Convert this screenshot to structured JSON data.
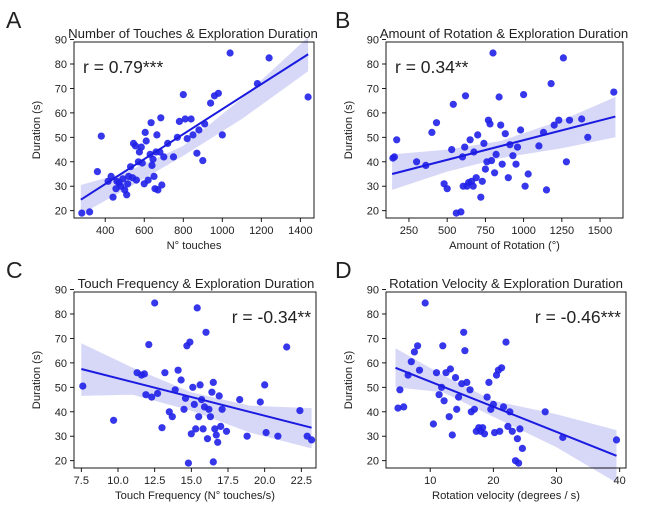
{
  "style": {
    "point_color": "#2020e8",
    "line_color": "#1a1ae0",
    "band_color": "#c9c9f4",
    "axis_color": "#000000"
  },
  "chart_data": [
    {
      "panel_letter": "A",
      "type": "scatter",
      "title": "Number of Touches & Exploration Duration",
      "xlabel": "N° touches",
      "ylabel": "Duration (s)",
      "annotation": "r = 0.79***",
      "annotation_position": "top-left",
      "xlim": [
        240,
        1470
      ],
      "ylim": [
        17,
        89
      ],
      "xticks": [
        400,
        600,
        800,
        1000,
        1200,
        1400
      ],
      "yticks": [
        20,
        30,
        40,
        50,
        60,
        70,
        80,
        90
      ],
      "regression": {
        "x": [
          275,
          1440
        ],
        "y": [
          24.5,
          84
        ]
      },
      "band": {
        "upper": [
          [
            275,
            30.5
          ],
          [
            500,
            35.5
          ],
          [
            800,
            46.5
          ],
          [
            1100,
            66
          ],
          [
            1440,
            91
          ]
        ],
        "lower": [
          [
            275,
            18.5
          ],
          [
            500,
            28.5
          ],
          [
            800,
            42.5
          ],
          [
            1100,
            57.5
          ],
          [
            1440,
            77
          ]
        ]
      },
      "points": [
        [
          280,
          19
        ],
        [
          320,
          19.5
        ],
        [
          360,
          36
        ],
        [
          380,
          50.5
        ],
        [
          415,
          32
        ],
        [
          430,
          34
        ],
        [
          440,
          25.5
        ],
        [
          455,
          29
        ],
        [
          460,
          32
        ],
        [
          470,
          31.5
        ],
        [
          480,
          30
        ],
        [
          490,
          33
        ],
        [
          500,
          28.5
        ],
        [
          510,
          26.5
        ],
        [
          515,
          31
        ],
        [
          520,
          34
        ],
        [
          530,
          38
        ],
        [
          540,
          33.5
        ],
        [
          545,
          47.5
        ],
        [
          555,
          46.5
        ],
        [
          560,
          32.5
        ],
        [
          570,
          40
        ],
        [
          575,
          44
        ],
        [
          585,
          46
        ],
        [
          590,
          39.5
        ],
        [
          600,
          31
        ],
        [
          605,
          52
        ],
        [
          610,
          48.5
        ],
        [
          620,
          32.5
        ],
        [
          630,
          43
        ],
        [
          635,
          56
        ],
        [
          640,
          38.5
        ],
        [
          645,
          41
        ],
        [
          650,
          34
        ],
        [
          655,
          29
        ],
        [
          660,
          44
        ],
        [
          665,
          51
        ],
        [
          670,
          28.5
        ],
        [
          680,
          44
        ],
        [
          685,
          58
        ],
        [
          690,
          30.5
        ],
        [
          700,
          42
        ],
        [
          720,
          47.5
        ],
        [
          750,
          42
        ],
        [
          770,
          50
        ],
        [
          780,
          56.5
        ],
        [
          800,
          67.5
        ],
        [
          810,
          57.5
        ],
        [
          820,
          49.5
        ],
        [
          840,
          57.5
        ],
        [
          850,
          51
        ],
        [
          870,
          43.5
        ],
        [
          880,
          53
        ],
        [
          900,
          40.5
        ],
        [
          910,
          55.5
        ],
        [
          940,
          64
        ],
        [
          960,
          67
        ],
        [
          980,
          68
        ],
        [
          1000,
          51
        ],
        [
          1040,
          84.5
        ],
        [
          1180,
          72
        ],
        [
          1240,
          82.5
        ],
        [
          1440,
          66.5
        ]
      ]
    },
    {
      "panel_letter": "B",
      "type": "scatter",
      "title": "Amount of Rotation & Exploration Duration",
      "xlabel": "Amount of Rotation (°)",
      "ylabel": "Duration (s)",
      "annotation": "r = 0.34**",
      "annotation_position": "top-left",
      "xlim": [
        100,
        1650
      ],
      "ylim": [
        17,
        89
      ],
      "xticks": [
        250,
        500,
        750,
        1000,
        1250,
        1500
      ],
      "yticks": [
        20,
        30,
        40,
        50,
        60,
        70,
        80,
        90
      ],
      "regression": {
        "x": [
          140,
          1600
        ],
        "y": [
          35,
          58.5
        ]
      },
      "band": {
        "upper": [
          [
            140,
            43
          ],
          [
            500,
            45
          ],
          [
            850,
            48.5
          ],
          [
            1250,
            57
          ],
          [
            1600,
            66.5
          ]
        ],
        "lower": [
          [
            140,
            28.5
          ],
          [
            500,
            36
          ],
          [
            850,
            41.5
          ],
          [
            1250,
            45.5
          ],
          [
            1600,
            50
          ]
        ]
      },
      "points": [
        [
          145,
          41.5
        ],
        [
          155,
          42
        ],
        [
          170,
          49
        ],
        [
          300,
          40
        ],
        [
          360,
          38.5
        ],
        [
          400,
          52
        ],
        [
          430,
          56
        ],
        [
          480,
          31
        ],
        [
          500,
          29
        ],
        [
          530,
          45
        ],
        [
          540,
          63.5
        ],
        [
          560,
          19
        ],
        [
          590,
          19.5
        ],
        [
          600,
          42
        ],
        [
          605,
          30
        ],
        [
          615,
          46
        ],
        [
          620,
          67
        ],
        [
          630,
          30
        ],
        [
          640,
          31.5
        ],
        [
          650,
          49
        ],
        [
          660,
          32
        ],
        [
          670,
          30
        ],
        [
          675,
          44
        ],
        [
          690,
          33.5
        ],
        [
          700,
          51
        ],
        [
          720,
          25.5
        ],
        [
          730,
          32
        ],
        [
          740,
          47.5
        ],
        [
          750,
          37
        ],
        [
          760,
          40
        ],
        [
          770,
          57
        ],
        [
          780,
          55.5
        ],
        [
          790,
          40.5
        ],
        [
          800,
          84.5
        ],
        [
          810,
          35.5
        ],
        [
          820,
          43
        ],
        [
          840,
          66.5
        ],
        [
          850,
          55
        ],
        [
          860,
          39
        ],
        [
          880,
          51.5
        ],
        [
          900,
          33.5
        ],
        [
          910,
          47
        ],
        [
          930,
          42.5
        ],
        [
          950,
          39
        ],
        [
          960,
          46
        ],
        [
          980,
          53
        ],
        [
          1000,
          67.5
        ],
        [
          1010,
          30
        ],
        [
          1030,
          35
        ],
        [
          1100,
          46.5
        ],
        [
          1130,
          52
        ],
        [
          1150,
          28.5
        ],
        [
          1180,
          72
        ],
        [
          1200,
          55
        ],
        [
          1230,
          57
        ],
        [
          1260,
          82.5
        ],
        [
          1280,
          40
        ],
        [
          1300,
          57
        ],
        [
          1380,
          57.5
        ],
        [
          1420,
          50
        ],
        [
          1590,
          68.5
        ]
      ]
    },
    {
      "panel_letter": "C",
      "type": "scatter",
      "title": "Touch Frequency & Exploration Duration",
      "xlabel": "Touch Frequency (N° touches/s)",
      "ylabel": "Duration (s)",
      "annotation": "r = -0.34**",
      "annotation_position": "top-right",
      "xlim": [
        7.0,
        23.5
      ],
      "ylim": [
        17,
        89
      ],
      "xticks": [
        7.5,
        10.0,
        12.5,
        15.0,
        17.5,
        20.0,
        22.5
      ],
      "yticks": [
        20,
        30,
        40,
        50,
        60,
        70,
        80,
        90
      ],
      "xtick_labels": [
        "7.5",
        "10.0",
        "12.5",
        "15.0",
        "17.5",
        "20.0",
        "22.5"
      ],
      "regression": {
        "x": [
          7.5,
          23.2
        ],
        "y": [
          57.5,
          33.5
        ]
      },
      "band": {
        "upper": [
          [
            7.5,
            68
          ],
          [
            11,
            58
          ],
          [
            15,
            48
          ],
          [
            19,
            42.5
          ],
          [
            23.2,
            41.5
          ]
        ],
        "lower": [
          [
            7.5,
            46.5
          ],
          [
            11,
            47
          ],
          [
            15,
            40.5
          ],
          [
            19,
            31.5
          ],
          [
            23.2,
            25
          ]
        ]
      },
      "points": [
        [
          7.6,
          50.5
        ],
        [
          9.7,
          36.5
        ],
        [
          11.3,
          56
        ],
        [
          11.6,
          55
        ],
        [
          11.8,
          55.5
        ],
        [
          11.9,
          47
        ],
        [
          12.1,
          67.5
        ],
        [
          12.3,
          46
        ],
        [
          12.5,
          84.5
        ],
        [
          12.7,
          47.5
        ],
        [
          13.0,
          33.5
        ],
        [
          13.2,
          56
        ],
        [
          13.5,
          40
        ],
        [
          13.7,
          38
        ],
        [
          13.9,
          49
        ],
        [
          14.1,
          57
        ],
        [
          14.3,
          53
        ],
        [
          14.5,
          41
        ],
        [
          14.6,
          45.5
        ],
        [
          14.7,
          67
        ],
        [
          14.8,
          19
        ],
        [
          14.9,
          68.5
        ],
        [
          15.0,
          31
        ],
        [
          15.1,
          50
        ],
        [
          15.2,
          43
        ],
        [
          15.3,
          33
        ],
        [
          15.4,
          82.5
        ],
        [
          15.5,
          38
        ],
        [
          15.6,
          51
        ],
        [
          15.7,
          45
        ],
        [
          15.8,
          33
        ],
        [
          15.9,
          42
        ],
        [
          16.0,
          72.5
        ],
        [
          16.1,
          29
        ],
        [
          16.2,
          41
        ],
        [
          16.3,
          38
        ],
        [
          16.4,
          48
        ],
        [
          16.5,
          52
        ],
        [
          16.5,
          19.5
        ],
        [
          16.6,
          33
        ],
        [
          16.7,
          30.5
        ],
        [
          16.8,
          27.5
        ],
        [
          16.9,
          46.5
        ],
        [
          17.0,
          34
        ],
        [
          17.1,
          41
        ],
        [
          17.4,
          32
        ],
        [
          18.3,
          45
        ],
        [
          18.8,
          30
        ],
        [
          19.7,
          44
        ],
        [
          20.0,
          51
        ],
        [
          20.1,
          31.5
        ],
        [
          20.9,
          30
        ],
        [
          21.5,
          66.5
        ],
        [
          22.4,
          40.5
        ],
        [
          22.9,
          30
        ],
        [
          23.2,
          28.5
        ]
      ]
    },
    {
      "panel_letter": "D",
      "type": "scatter",
      "title": "Rotation Velocity & Exploration Duration",
      "xlabel": "Rotation velocity (degrees / s)",
      "ylabel": "Duration (s)",
      "annotation": "r = -0.46***",
      "annotation_position": "top-right",
      "xlim": [
        3.0,
        41.0
      ],
      "ylim": [
        17,
        89
      ],
      "xticks": [
        10,
        20,
        30,
        40
      ],
      "yticks": [
        20,
        30,
        40,
        50,
        60,
        70,
        80,
        90
      ],
      "regression": {
        "x": [
          4.5,
          39.5
        ],
        "y": [
          58,
          22
        ]
      },
      "band": {
        "upper": [
          [
            4.5,
            66
          ],
          [
            12,
            55
          ],
          [
            20,
            44.5
          ],
          [
            30,
            39
          ],
          [
            39.5,
            32.5
          ]
        ],
        "lower": [
          [
            4.5,
            50
          ],
          [
            12,
            48
          ],
          [
            20,
            38
          ],
          [
            30,
            25.5
          ],
          [
            39.5,
            11
          ]
        ]
      },
      "points": [
        [
          4.9,
          41.5
        ],
        [
          5.2,
          49
        ],
        [
          5.8,
          42
        ],
        [
          6.5,
          55
        ],
        [
          7.0,
          60.5
        ],
        [
          7.5,
          64.5
        ],
        [
          8.0,
          67
        ],
        [
          8.3,
          57
        ],
        [
          9.2,
          84.5
        ],
        [
          10.5,
          35
        ],
        [
          11.0,
          56
        ],
        [
          11.4,
          47
        ],
        [
          11.8,
          50
        ],
        [
          12.0,
          67
        ],
        [
          12.2,
          44.5
        ],
        [
          12.5,
          56
        ],
        [
          13.0,
          38
        ],
        [
          13.2,
          57.5
        ],
        [
          13.5,
          30.5
        ],
        [
          14.0,
          54
        ],
        [
          14.2,
          41
        ],
        [
          14.5,
          46
        ],
        [
          15.0,
          51.5
        ],
        [
          15.3,
          72.5
        ],
        [
          15.5,
          65
        ],
        [
          15.8,
          52
        ],
        [
          16.3,
          49
        ],
        [
          16.5,
          40
        ],
        [
          17.0,
          41
        ],
        [
          17.3,
          32
        ],
        [
          17.7,
          33.5
        ],
        [
          18.0,
          32
        ],
        [
          18.3,
          33.5
        ],
        [
          18.6,
          31
        ],
        [
          19.0,
          46
        ],
        [
          19.3,
          52
        ],
        [
          19.6,
          41
        ],
        [
          20.0,
          43
        ],
        [
          20.2,
          31.5
        ],
        [
          20.5,
          55
        ],
        [
          20.8,
          57
        ],
        [
          21.0,
          32
        ],
        [
          21.3,
          58
        ],
        [
          21.6,
          42
        ],
        [
          22.0,
          68.5
        ],
        [
          22.3,
          34
        ],
        [
          22.6,
          40
        ],
        [
          23.0,
          32
        ],
        [
          23.5,
          20
        ],
        [
          23.8,
          29
        ],
        [
          24.0,
          19
        ],
        [
          24.2,
          33
        ],
        [
          24.6,
          25
        ],
        [
          28.2,
          40
        ],
        [
          31.0,
          29.5
        ],
        [
          39.5,
          28.5
        ]
      ]
    }
  ]
}
